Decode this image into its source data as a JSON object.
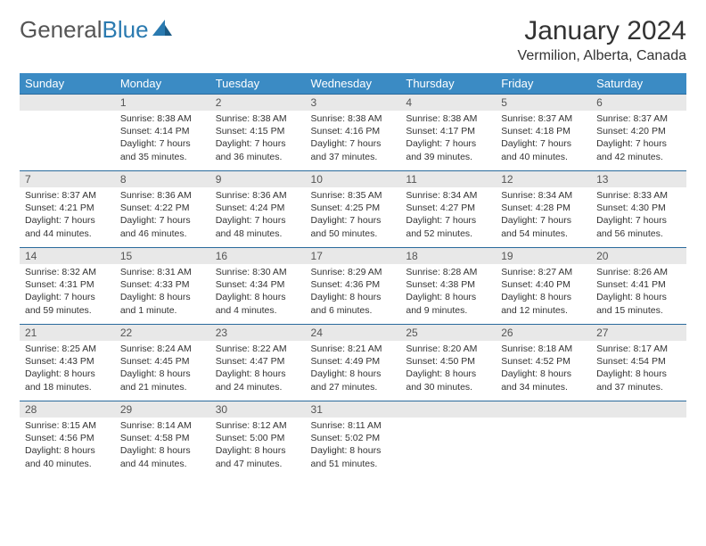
{
  "logo": {
    "part1": "General",
    "part2": "Blue"
  },
  "title": "January 2024",
  "location": "Vermilion, Alberta, Canada",
  "colors": {
    "header_bg": "#3b8bc4",
    "header_text": "#ffffff",
    "daynum_bg": "#e8e8e8",
    "week_border": "#2a6a9c",
    "logo_blue": "#2a7ab0",
    "body_text": "#333333"
  },
  "day_labels": [
    "Sunday",
    "Monday",
    "Tuesday",
    "Wednesday",
    "Thursday",
    "Friday",
    "Saturday"
  ],
  "weeks": [
    [
      null,
      {
        "n": "1",
        "sr": "Sunrise: 8:38 AM",
        "ss": "Sunset: 4:14 PM",
        "d1": "Daylight: 7 hours",
        "d2": "and 35 minutes."
      },
      {
        "n": "2",
        "sr": "Sunrise: 8:38 AM",
        "ss": "Sunset: 4:15 PM",
        "d1": "Daylight: 7 hours",
        "d2": "and 36 minutes."
      },
      {
        "n": "3",
        "sr": "Sunrise: 8:38 AM",
        "ss": "Sunset: 4:16 PM",
        "d1": "Daylight: 7 hours",
        "d2": "and 37 minutes."
      },
      {
        "n": "4",
        "sr": "Sunrise: 8:38 AM",
        "ss": "Sunset: 4:17 PM",
        "d1": "Daylight: 7 hours",
        "d2": "and 39 minutes."
      },
      {
        "n": "5",
        "sr": "Sunrise: 8:37 AM",
        "ss": "Sunset: 4:18 PM",
        "d1": "Daylight: 7 hours",
        "d2": "and 40 minutes."
      },
      {
        "n": "6",
        "sr": "Sunrise: 8:37 AM",
        "ss": "Sunset: 4:20 PM",
        "d1": "Daylight: 7 hours",
        "d2": "and 42 minutes."
      }
    ],
    [
      {
        "n": "7",
        "sr": "Sunrise: 8:37 AM",
        "ss": "Sunset: 4:21 PM",
        "d1": "Daylight: 7 hours",
        "d2": "and 44 minutes."
      },
      {
        "n": "8",
        "sr": "Sunrise: 8:36 AM",
        "ss": "Sunset: 4:22 PM",
        "d1": "Daylight: 7 hours",
        "d2": "and 46 minutes."
      },
      {
        "n": "9",
        "sr": "Sunrise: 8:36 AM",
        "ss": "Sunset: 4:24 PM",
        "d1": "Daylight: 7 hours",
        "d2": "and 48 minutes."
      },
      {
        "n": "10",
        "sr": "Sunrise: 8:35 AM",
        "ss": "Sunset: 4:25 PM",
        "d1": "Daylight: 7 hours",
        "d2": "and 50 minutes."
      },
      {
        "n": "11",
        "sr": "Sunrise: 8:34 AM",
        "ss": "Sunset: 4:27 PM",
        "d1": "Daylight: 7 hours",
        "d2": "and 52 minutes."
      },
      {
        "n": "12",
        "sr": "Sunrise: 8:34 AM",
        "ss": "Sunset: 4:28 PM",
        "d1": "Daylight: 7 hours",
        "d2": "and 54 minutes."
      },
      {
        "n": "13",
        "sr": "Sunrise: 8:33 AM",
        "ss": "Sunset: 4:30 PM",
        "d1": "Daylight: 7 hours",
        "d2": "and 56 minutes."
      }
    ],
    [
      {
        "n": "14",
        "sr": "Sunrise: 8:32 AM",
        "ss": "Sunset: 4:31 PM",
        "d1": "Daylight: 7 hours",
        "d2": "and 59 minutes."
      },
      {
        "n": "15",
        "sr": "Sunrise: 8:31 AM",
        "ss": "Sunset: 4:33 PM",
        "d1": "Daylight: 8 hours",
        "d2": "and 1 minute."
      },
      {
        "n": "16",
        "sr": "Sunrise: 8:30 AM",
        "ss": "Sunset: 4:34 PM",
        "d1": "Daylight: 8 hours",
        "d2": "and 4 minutes."
      },
      {
        "n": "17",
        "sr": "Sunrise: 8:29 AM",
        "ss": "Sunset: 4:36 PM",
        "d1": "Daylight: 8 hours",
        "d2": "and 6 minutes."
      },
      {
        "n": "18",
        "sr": "Sunrise: 8:28 AM",
        "ss": "Sunset: 4:38 PM",
        "d1": "Daylight: 8 hours",
        "d2": "and 9 minutes."
      },
      {
        "n": "19",
        "sr": "Sunrise: 8:27 AM",
        "ss": "Sunset: 4:40 PM",
        "d1": "Daylight: 8 hours",
        "d2": "and 12 minutes."
      },
      {
        "n": "20",
        "sr": "Sunrise: 8:26 AM",
        "ss": "Sunset: 4:41 PM",
        "d1": "Daylight: 8 hours",
        "d2": "and 15 minutes."
      }
    ],
    [
      {
        "n": "21",
        "sr": "Sunrise: 8:25 AM",
        "ss": "Sunset: 4:43 PM",
        "d1": "Daylight: 8 hours",
        "d2": "and 18 minutes."
      },
      {
        "n": "22",
        "sr": "Sunrise: 8:24 AM",
        "ss": "Sunset: 4:45 PM",
        "d1": "Daylight: 8 hours",
        "d2": "and 21 minutes."
      },
      {
        "n": "23",
        "sr": "Sunrise: 8:22 AM",
        "ss": "Sunset: 4:47 PM",
        "d1": "Daylight: 8 hours",
        "d2": "and 24 minutes."
      },
      {
        "n": "24",
        "sr": "Sunrise: 8:21 AM",
        "ss": "Sunset: 4:49 PM",
        "d1": "Daylight: 8 hours",
        "d2": "and 27 minutes."
      },
      {
        "n": "25",
        "sr": "Sunrise: 8:20 AM",
        "ss": "Sunset: 4:50 PM",
        "d1": "Daylight: 8 hours",
        "d2": "and 30 minutes."
      },
      {
        "n": "26",
        "sr": "Sunrise: 8:18 AM",
        "ss": "Sunset: 4:52 PM",
        "d1": "Daylight: 8 hours",
        "d2": "and 34 minutes."
      },
      {
        "n": "27",
        "sr": "Sunrise: 8:17 AM",
        "ss": "Sunset: 4:54 PM",
        "d1": "Daylight: 8 hours",
        "d2": "and 37 minutes."
      }
    ],
    [
      {
        "n": "28",
        "sr": "Sunrise: 8:15 AM",
        "ss": "Sunset: 4:56 PM",
        "d1": "Daylight: 8 hours",
        "d2": "and 40 minutes."
      },
      {
        "n": "29",
        "sr": "Sunrise: 8:14 AM",
        "ss": "Sunset: 4:58 PM",
        "d1": "Daylight: 8 hours",
        "d2": "and 44 minutes."
      },
      {
        "n": "30",
        "sr": "Sunrise: 8:12 AM",
        "ss": "Sunset: 5:00 PM",
        "d1": "Daylight: 8 hours",
        "d2": "and 47 minutes."
      },
      {
        "n": "31",
        "sr": "Sunrise: 8:11 AM",
        "ss": "Sunset: 5:02 PM",
        "d1": "Daylight: 8 hours",
        "d2": "and 51 minutes."
      },
      null,
      null,
      null
    ]
  ]
}
